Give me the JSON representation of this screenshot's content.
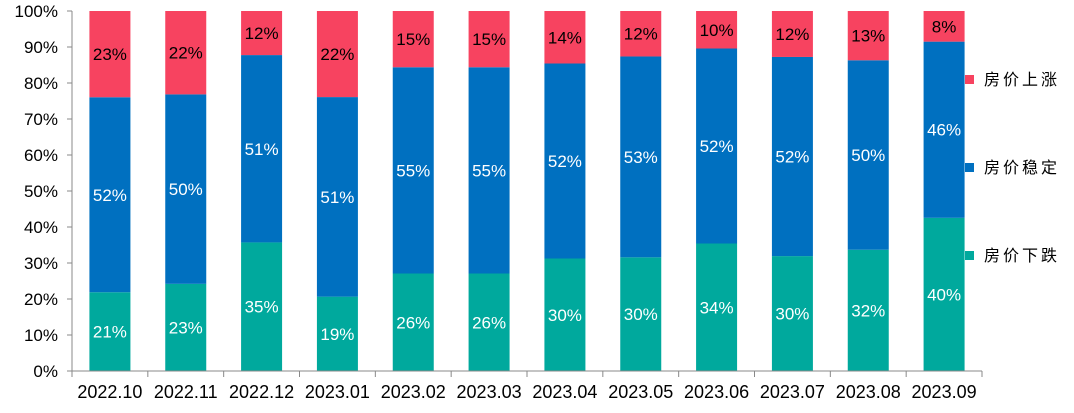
{
  "chart_data": {
    "type": "bar",
    "stacked": true,
    "normalized_percent": true,
    "categories": [
      "2022.10",
      "2022.11",
      "2022.12",
      "2023.01",
      "2023.02",
      "2023.03",
      "2023.04",
      "2023.05",
      "2023.06",
      "2023.07",
      "2023.08",
      "2023.09"
    ],
    "series": [
      {
        "name": "房价下跌",
        "color": "#00A99D",
        "label_color": "#ffffff",
        "values": [
          21,
          23,
          35,
          19,
          26,
          26,
          30,
          30,
          34,
          30,
          32,
          40
        ]
      },
      {
        "name": "房价稳定",
        "color": "#0070C0",
        "label_color": "#ffffff",
        "values": [
          52,
          50,
          51,
          51,
          55,
          55,
          52,
          53,
          52,
          52,
          50,
          46
        ]
      },
      {
        "name": "房价上涨",
        "color": "#F74360",
        "label_color": "#000000",
        "values": [
          23,
          22,
          12,
          22,
          15,
          15,
          14,
          12,
          10,
          12,
          13,
          8
        ]
      }
    ],
    "value_suffix": "%",
    "ylim": [
      0,
      100
    ],
    "yticks": [
      "0%",
      "10%",
      "20%",
      "30%",
      "40%",
      "50%",
      "60%",
      "70%",
      "80%",
      "90%",
      "100%"
    ],
    "grid": false,
    "legend_position": "right",
    "legend_order": [
      "房价上涨",
      "房价稳定",
      "房价下跌"
    ]
  }
}
